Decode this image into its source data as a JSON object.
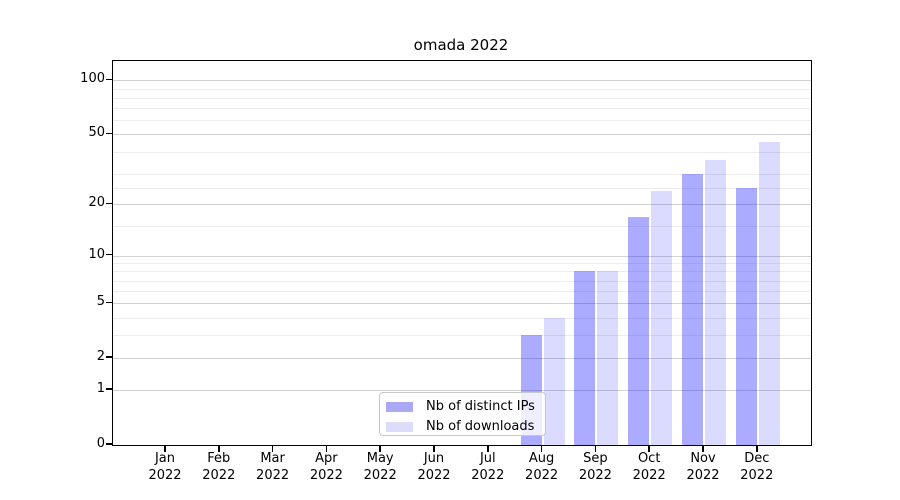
{
  "title": "omada 2022",
  "chart_data": {
    "type": "bar",
    "title": "omada 2022",
    "categories": [
      "Jan 2022",
      "Feb 2022",
      "Mar 2022",
      "Apr 2022",
      "May 2022",
      "Jun 2022",
      "Jul 2022",
      "Aug 2022",
      "Sep 2022",
      "Oct 2022",
      "Nov 2022",
      "Dec 2022"
    ],
    "series": [
      {
        "name": "Nb of distinct IPs",
        "values": [
          0,
          0,
          0,
          0,
          0,
          0,
          0,
          3,
          8,
          17,
          30,
          25
        ],
        "fill": "rgba(0,0,255,0.33)",
        "legend_color": "#a9a9f6"
      },
      {
        "name": "Nb of downloads",
        "values": [
          0,
          0,
          0,
          0,
          0,
          0,
          0,
          4,
          8,
          24,
          36,
          45
        ],
        "fill": "rgba(0,0,255,0.14)",
        "legend_color": "#dcdcfb"
      }
    ],
    "xlabel": "",
    "ylabel": "",
    "yscale": "log1p",
    "ylim": [
      0,
      128
    ],
    "yticks": [
      0,
      1,
      2,
      5,
      10,
      20,
      50,
      100
    ],
    "minor_yticks": [
      3,
      4,
      6,
      7,
      8,
      9,
      15,
      25,
      30,
      40,
      60,
      70,
      80,
      90
    ],
    "grid": true,
    "legend_position": "lower center",
    "colors": {
      "bar_dark": "#a9a9f6",
      "bar_light": "#dcdcfb",
      "major_grid": "#d2d2d2",
      "minor_grid": "#ededed",
      "spine": "#000000",
      "text": "#000000"
    }
  },
  "legend": {
    "items": [
      {
        "label": "Nb of distinct IPs"
      },
      {
        "label": "Nb of downloads"
      }
    ]
  }
}
